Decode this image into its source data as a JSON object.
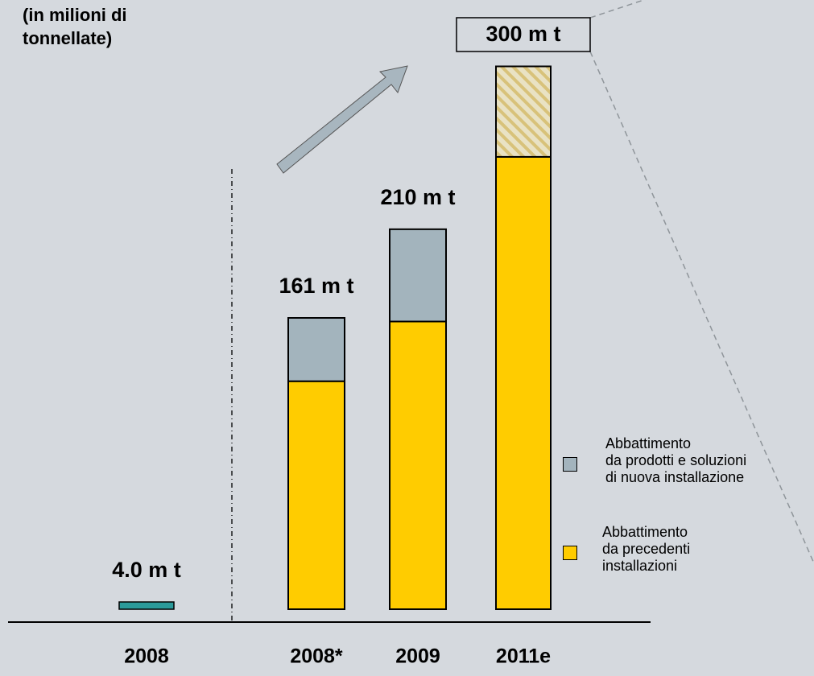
{
  "chart_data": {
    "type": "bar",
    "subtitle": "(in milioni di\ntonnellate)",
    "categories": [
      "2008",
      "2008*",
      "2009",
      "2011e"
    ],
    "totals": [
      4.0,
      161,
      210,
      300
    ],
    "value_labels": [
      "4.0 m t",
      "161 m t",
      "210 m t",
      "300 m t"
    ],
    "total_color": "#2b9a9a",
    "series": [
      {
        "name": "Abbattimento\nda precedenti\ninstallazioni",
        "color": "#ffcc00",
        "values": [
          null,
          126,
          159,
          250
        ]
      },
      {
        "name": "Abbattimento\nda prodotti e soluzioni\ndi nuova installazione",
        "color": "#a3b4bd",
        "values": [
          null,
          35,
          51,
          50
        ],
        "hatch": [
          false,
          false,
          false,
          true
        ]
      }
    ],
    "ylim": [
      0,
      310
    ]
  }
}
